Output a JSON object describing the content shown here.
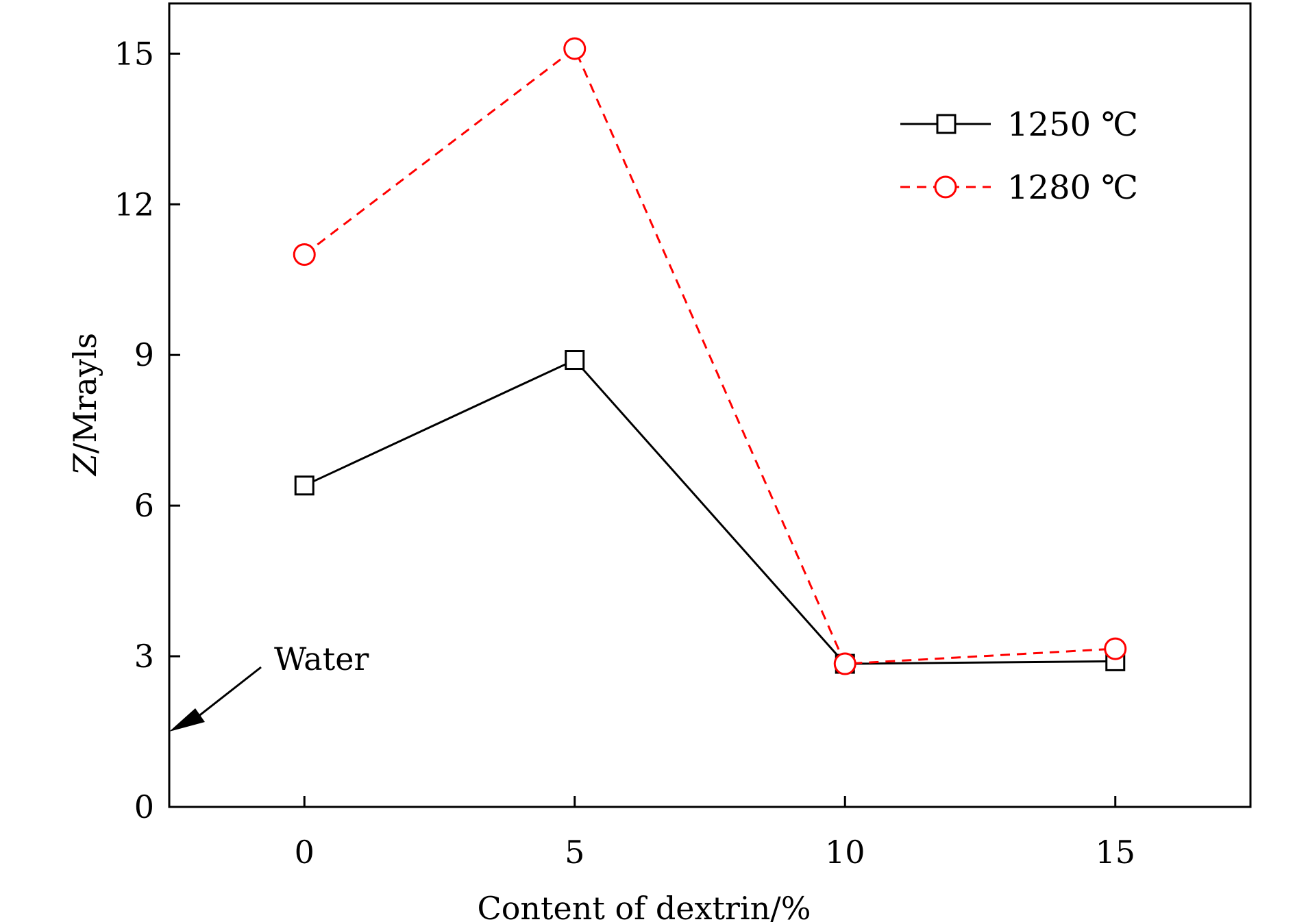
{
  "chart_data": {
    "type": "line",
    "x": [
      0,
      5,
      10,
      15
    ],
    "xlabel": "Content of dextrin/%",
    "ylabel_italic": "Z",
    "ylabel_rest": "/Mrayls",
    "xlim": [
      -2.5,
      17.5
    ],
    "ylim": [
      0,
      16
    ],
    "xticks": [
      0,
      5,
      10,
      15
    ],
    "yticks": [
      0,
      3,
      6,
      9,
      12,
      15
    ],
    "grid": false,
    "legend_position": "top-right",
    "series": [
      {
        "name": "1250 ℃",
        "values": [
          6.4,
          8.9,
          2.85,
          2.9
        ],
        "color": "#000000",
        "marker": "square",
        "line": "solid"
      },
      {
        "name": "1280 ℃",
        "values": [
          11.0,
          15.1,
          2.85,
          3.15
        ],
        "color": "#ff0000",
        "marker": "circle",
        "line": "dashed"
      }
    ],
    "annotation": {
      "text": "Water",
      "value": 1.5
    }
  }
}
